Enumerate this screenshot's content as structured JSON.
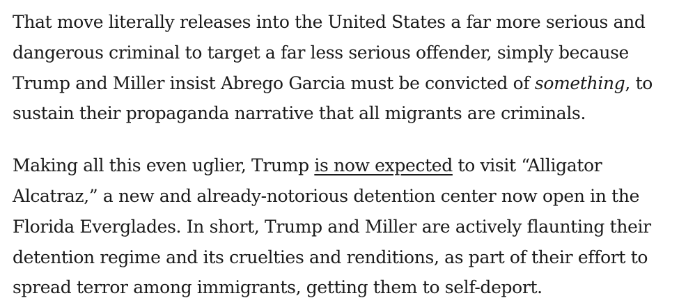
{
  "paragraph_1": {
    "line_1": "That move literally releases into the United States a far more serious and",
    "line_2": "dangerous criminal to target a far less serious offender, simply because",
    "line_3_before": "Trump and Miller insist Abrego Garcia must be convicted of ",
    "line_3_emphasis": "something",
    "line_3_after": ", to",
    "line_4": "sustain their propaganda narrative that all migrants are criminals."
  },
  "paragraph_2": {
    "line_1_before": "Making all this even uglier, Trump ",
    "line_1_link": "is now expected",
    "line_1_after": " to visit “Alligator",
    "line_2": "Alcatraz,” a new and already-notorious detention center now open in the",
    "line_3": "Florida Everglades. In short, Trump and Miller are actively flaunting their",
    "line_4": "detention regime and its cruelties and renditions, as part of their effort to",
    "line_5": "spread terror among immigrants, getting them to self-deport."
  }
}
